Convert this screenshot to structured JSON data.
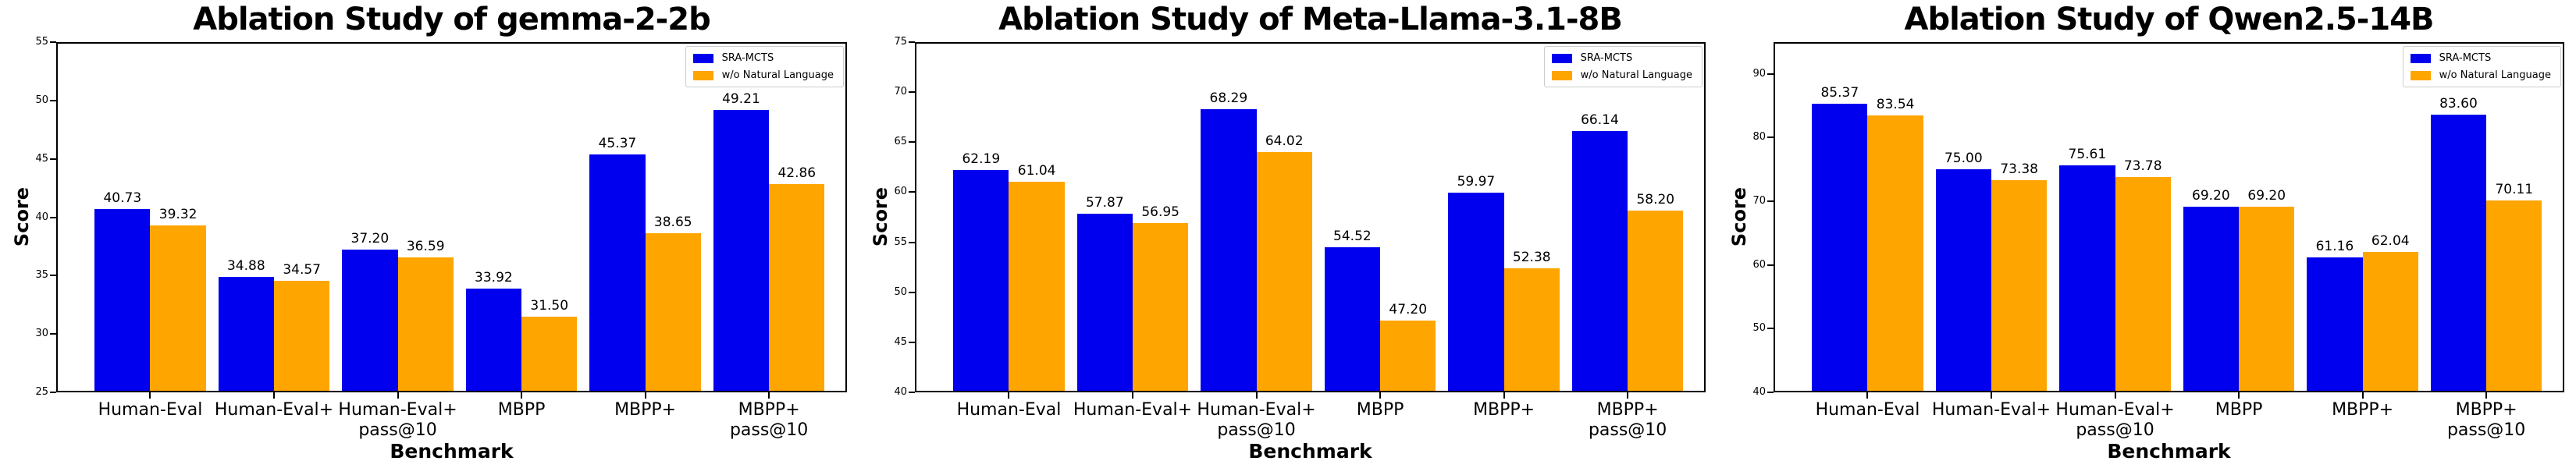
{
  "figure": {
    "background": "#ffffff",
    "accent_blue": "#0000EE",
    "accent_orange": "#FFA500"
  },
  "chart_data": [
    {
      "type": "bar",
      "title": "Ablation Study of gemma-2-2b",
      "xlabel": "Benchmark",
      "ylabel": "Score",
      "categories": [
        "Human-Eval",
        "Human-Eval+",
        "Human-Eval+\npass@10",
        "MBPP",
        "MBPP+",
        "MBPP+\npass@10"
      ],
      "series": [
        {
          "name": "SRA-MCTS",
          "color": "#0000EE",
          "values": [
            40.73,
            34.88,
            37.2,
            33.92,
            45.37,
            49.21
          ]
        },
        {
          "name": "w/o Natural Language",
          "color": "#FFA500",
          "values": [
            39.32,
            34.57,
            36.59,
            31.5,
            38.65,
            42.86
          ]
        }
      ],
      "ylim": [
        25,
        55
      ],
      "yticks": [
        25,
        30,
        35,
        40,
        45,
        50,
        55
      ],
      "grid": false,
      "legend_position": "top-right",
      "value_label_decimals": 2
    },
    {
      "type": "bar",
      "title": "Ablation Study of Meta-Llama-3.1-8B",
      "xlabel": "Benchmark",
      "ylabel": "Score",
      "categories": [
        "Human-Eval",
        "Human-Eval+",
        "Human-Eval+\npass@10",
        "MBPP",
        "MBPP+",
        "MBPP+\npass@10"
      ],
      "series": [
        {
          "name": "SRA-MCTS",
          "color": "#0000EE",
          "values": [
            62.19,
            57.87,
            68.29,
            54.52,
            59.97,
            66.14
          ]
        },
        {
          "name": "w/o Natural Language",
          "color": "#FFA500",
          "values": [
            61.04,
            56.95,
            64.02,
            47.2,
            52.38,
            58.2
          ]
        }
      ],
      "ylim": [
        40,
        75
      ],
      "yticks": [
        40,
        45,
        50,
        55,
        60,
        65,
        70,
        75
      ],
      "grid": false,
      "legend_position": "top-right",
      "value_label_decimals": 2
    },
    {
      "type": "bar",
      "title": "Ablation Study of Qwen2.5-14B",
      "xlabel": "Benchmark",
      "ylabel": "Score",
      "categories": [
        "Human-Eval",
        "Human-Eval+",
        "Human-Eval+\npass@10",
        "MBPP",
        "MBPP+",
        "MBPP+\npass@10"
      ],
      "series": [
        {
          "name": "SRA-MCTS",
          "color": "#0000EE",
          "values": [
            85.37,
            75.0,
            75.61,
            69.2,
            61.16,
            83.6
          ]
        },
        {
          "name": "w/o Natural Language",
          "color": "#FFA500",
          "values": [
            83.54,
            73.38,
            73.78,
            69.2,
            62.04,
            70.11
          ]
        }
      ],
      "ylim": [
        40,
        95
      ],
      "yticks": [
        40,
        50,
        60,
        70,
        80,
        90
      ],
      "grid": false,
      "legend_position": "top-right",
      "value_label_decimals": 2
    }
  ]
}
